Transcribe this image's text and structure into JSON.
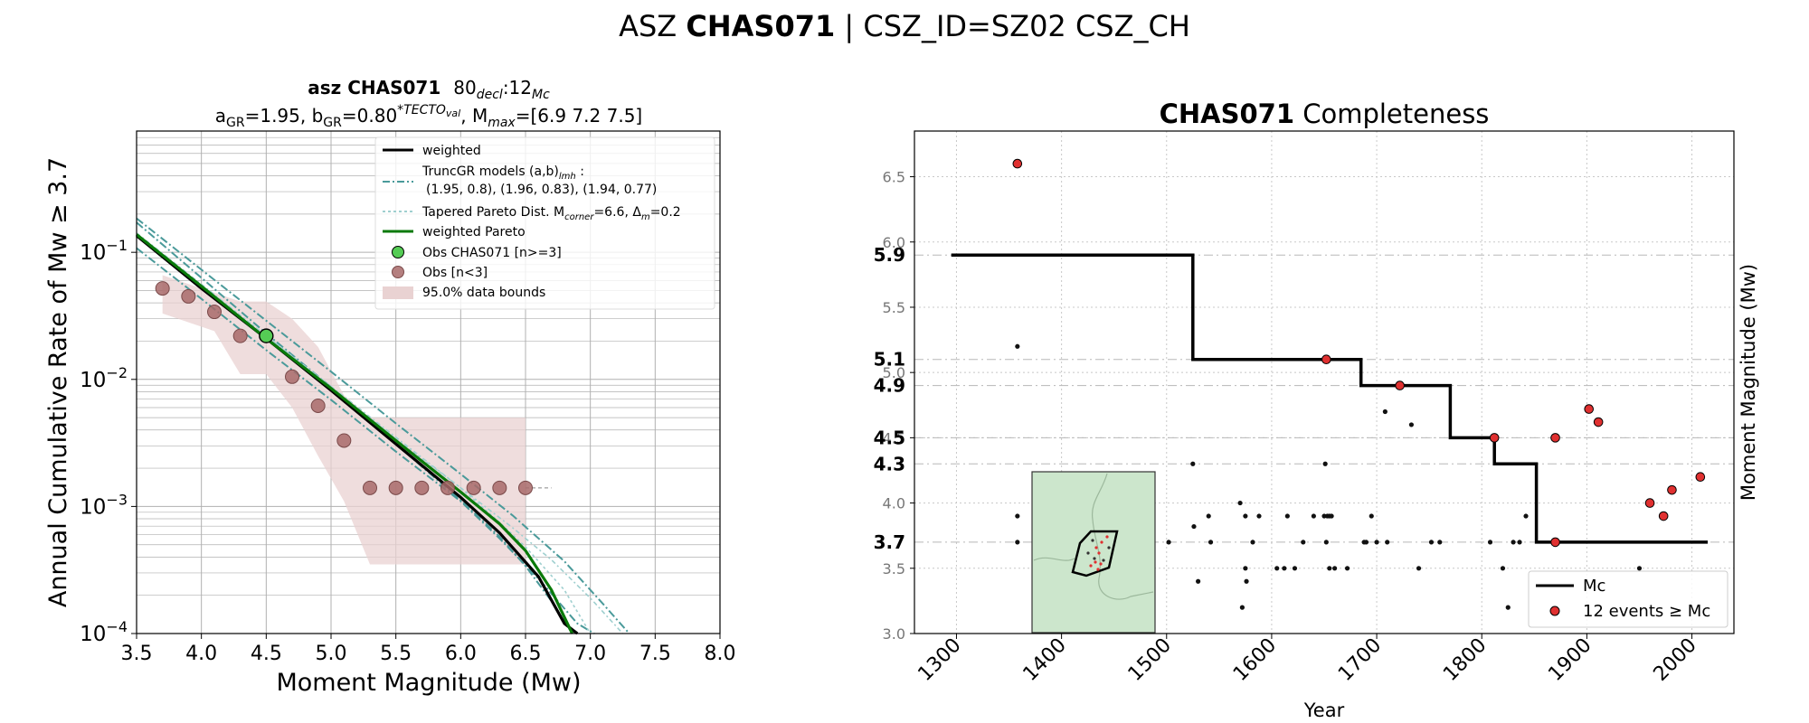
{
  "suptitle": {
    "prefix": "ASZ ",
    "name": "CHAS071",
    "suffix": " | CSZ_ID=SZ02 CSZ_CH"
  },
  "chart_data": [
    {
      "type": "scatter",
      "panel": "mfd",
      "title": {
        "line1_bold": "asz CHAS071",
        "line1_rest": "80",
        "line1_sub1": "decl",
        "line1_mid": ":12",
        "line1_sub2": "Mc",
        "line2_a": "a",
        "line2_a_sub": "GR",
        "line2_a_val": "=1.95,  b",
        "line2_b_sub": "GR",
        "line2_b_val": "=0.80",
        "line2_sup": "*TECTO",
        "line2_sup_sub": "val",
        "line2_rest": ", M",
        "line2_m_sub": "max",
        "line2_end": "=[6.9 7.2 7.5]"
      },
      "xlabel": "Moment Magnitude (Mw)",
      "ylabel": "Annual Cumulative Rate of Mw  ≥  3.7",
      "xlim": [
        3.5,
        8.0
      ],
      "ylim": [
        0.0001,
        0.9
      ],
      "yscale": "log",
      "xticks": [
        "3.5",
        "4.0",
        "4.5",
        "5.0",
        "5.5",
        "6.0",
        "6.5",
        "7.0",
        "7.5",
        "8.0"
      ],
      "yticks": [
        {
          "base": "10",
          "exp": "−1",
          "v": 0.1
        },
        {
          "base": "10",
          "exp": "−2",
          "v": 0.01
        },
        {
          "base": "10",
          "exp": "−3",
          "v": 0.001
        },
        {
          "base": "10",
          "exp": "−4",
          "v": 0.0001
        }
      ],
      "grid": true,
      "legend": {
        "placement": "top-right",
        "weighted": "weighted",
        "trunc_line1": "TruncGR models (a,b)",
        "trunc_sub": "lmh",
        "trunc_colon": " :",
        "trunc_line2": "(1.95, 0.8), (1.96, 0.83), (1.94, 0.77)",
        "tap_pre": "Tapered Pareto Dist. M",
        "tap_sub1": "corner",
        "tap_mid": "=6.6, Δ",
        "tap_sub2": "m",
        "tap_end": "=0.2",
        "pareto": "weighted Pareto",
        "obs_main": "Obs CHAS071 [n>=3]",
        "obs_small": "Obs [n<3]",
        "bounds": "95.0% data bounds"
      },
      "colors": {
        "weighted": "#000000",
        "trunc": "#4a9a9a",
        "tapered": "#9fcfcf",
        "pareto": "#0a7a0a",
        "obs_main": "#55cc55",
        "obs_small": "#a86a6a",
        "bounds": "#e9d2d2"
      },
      "obs_small": [
        {
          "x": 3.7,
          "y": 0.052
        },
        {
          "x": 3.9,
          "y": 0.045
        },
        {
          "x": 4.1,
          "y": 0.034
        },
        {
          "x": 4.3,
          "y": 0.022
        },
        {
          "x": 4.7,
          "y": 0.0105
        },
        {
          "x": 4.9,
          "y": 0.0062
        },
        {
          "x": 5.1,
          "y": 0.0033
        },
        {
          "x": 5.3,
          "y": 0.0014
        },
        {
          "x": 5.5,
          "y": 0.0014
        },
        {
          "x": 5.7,
          "y": 0.0014
        },
        {
          "x": 5.9,
          "y": 0.0014
        },
        {
          "x": 6.1,
          "y": 0.0014
        },
        {
          "x": 6.3,
          "y": 0.0014
        },
        {
          "x": 6.5,
          "y": 0.0014
        }
      ],
      "obs_main": [
        {
          "x": 4.5,
          "y": 0.022
        }
      ],
      "series": [
        {
          "name": "weighted",
          "x": [
            3.5,
            4.0,
            4.5,
            5.0,
            5.5,
            6.0,
            6.3,
            6.6,
            6.8,
            6.9
          ],
          "y": [
            0.135,
            0.052,
            0.021,
            0.0082,
            0.0031,
            0.00118,
            0.00062,
            0.00028,
            0.00012,
            0.0001
          ]
        },
        {
          "name": "weighted Pareto",
          "x": [
            3.5,
            4.0,
            4.5,
            5.0,
            5.5,
            6.0,
            6.3,
            6.5,
            6.7,
            6.86
          ],
          "y": [
            0.138,
            0.054,
            0.021,
            0.0085,
            0.0033,
            0.0013,
            0.00073,
            0.00045,
            0.00022,
            0.0001
          ]
        },
        {
          "x": [
            3.5,
            4.0,
            4.5,
            5.0,
            5.5,
            6.0,
            6.4,
            6.8,
            7.1,
            7.3
          ],
          "y": [
            0.185,
            0.073,
            0.029,
            0.0115,
            0.0045,
            0.0018,
            0.00085,
            0.00037,
            0.00017,
            0.0001
          ]
        },
        {
          "x": [
            3.5,
            4.0,
            4.5,
            5.0,
            5.5,
            6.0,
            6.3,
            6.6,
            6.9,
            7.03
          ],
          "y": [
            0.108,
            0.043,
            0.017,
            0.0069,
            0.0027,
            0.0011,
            0.00056,
            0.00027,
            0.00012,
            0.0001
          ]
        },
        {
          "x": [
            3.5,
            4.0,
            4.5,
            5.0,
            5.5,
            6.0,
            6.3,
            6.5,
            6.7,
            6.86
          ],
          "y": [
            0.172,
            0.063,
            0.023,
            0.0087,
            0.0031,
            0.00112,
            0.00058,
            0.00034,
            0.00018,
            0.0001
          ]
        },
        {
          "x": [
            3.5,
            4.0,
            4.5,
            5.0,
            5.5,
            6.0,
            6.3,
            6.5,
            6.8,
            7.0
          ],
          "y": [
            0.14,
            0.055,
            0.022,
            0.0087,
            0.0034,
            0.0014,
            0.00075,
            0.00048,
            0.00022,
            0.0001
          ]
        },
        {
          "x": [
            3.5,
            4.0,
            4.5,
            5.0,
            5.5,
            6.0,
            6.4,
            6.7,
            7.0,
            7.25
          ],
          "y": [
            0.142,
            0.056,
            0.022,
            0.0088,
            0.0035,
            0.0014,
            0.00068,
            0.00038,
            0.00019,
            0.0001
          ]
        }
      ],
      "bounds": {
        "x": [
          3.7,
          4.3,
          4.5,
          4.7,
          4.9,
          5.1,
          5.3,
          5.5,
          5.9,
          6.1,
          6.3,
          6.5,
          6.5,
          6.3,
          6.1,
          5.9,
          5.5,
          5.3,
          5.1,
          4.9,
          4.7,
          4.5,
          4.3,
          4.1,
          3.7
        ],
        "y": [
          0.066,
          0.041,
          0.041,
          0.03,
          0.018,
          0.0075,
          0.005,
          0.005,
          0.005,
          0.005,
          0.005,
          0.005,
          0.00035,
          0.00035,
          0.00035,
          0.00035,
          0.00035,
          0.00035,
          0.0011,
          0.0025,
          0.006,
          0.011,
          0.011,
          0.024,
          0.033
        ]
      }
    },
    {
      "type": "scatter",
      "panel": "completeness",
      "title_bold": "CHAS071",
      "title_rest": " Completeness",
      "xlabel": "Year",
      "ylabel": "Moment Magnitude (Mw)",
      "xlim": [
        1260,
        2040
      ],
      "ylim": [
        3.0,
        6.85
      ],
      "xticks": [
        "1300",
        "1400",
        "1500",
        "1600",
        "1700",
        "1800",
        "1900",
        "2000"
      ],
      "yticks": [
        "3.0",
        "3.5",
        "4.0",
        "4.5",
        "5.0",
        "5.5",
        "6.0",
        "6.5"
      ],
      "mc_labels": [
        "5.9",
        "5.1",
        "4.9",
        "4.5",
        "4.3",
        "3.7"
      ],
      "mc_steps": {
        "years": [
          1295,
          1525,
          1525,
          1685,
          1685,
          1770,
          1770,
          1812,
          1812,
          1852,
          1852,
          2015
        ],
        "mags": [
          5.9,
          5.9,
          5.1,
          5.1,
          4.9,
          4.9,
          4.5,
          4.5,
          4.3,
          4.3,
          3.7,
          3.7
        ]
      },
      "legend": {
        "placement": "bottom-right",
        "mc": "Mc",
        "events": "12 events  ≥  Mc"
      },
      "colors": {
        "mc": "#000000",
        "event_fill": "#e03030",
        "inset_bg": "#cce6cc"
      },
      "events_above": [
        {
          "x": 1358,
          "y": 6.6
        },
        {
          "x": 1652,
          "y": 5.1
        },
        {
          "x": 1722,
          "y": 4.9
        },
        {
          "x": 1812,
          "y": 4.5
        },
        {
          "x": 1870,
          "y": 3.7
        },
        {
          "x": 1870,
          "y": 4.5
        },
        {
          "x": 1902,
          "y": 4.72
        },
        {
          "x": 1911,
          "y": 4.62
        },
        {
          "x": 1960,
          "y": 4.0
        },
        {
          "x": 1973,
          "y": 3.9
        },
        {
          "x": 1981,
          "y": 4.1
        },
        {
          "x": 2008,
          "y": 4.2
        }
      ],
      "events_below": [
        {
          "x": 1358,
          "y": 5.2
        },
        {
          "x": 1358,
          "y": 3.9
        },
        {
          "x": 1358,
          "y": 3.7
        },
        {
          "x": 1502,
          "y": 3.7
        },
        {
          "x": 1525,
          "y": 4.3
        },
        {
          "x": 1526,
          "y": 3.82
        },
        {
          "x": 1530,
          "y": 3.4
        },
        {
          "x": 1540,
          "y": 3.9
        },
        {
          "x": 1542,
          "y": 3.7
        },
        {
          "x": 1570,
          "y": 4.0
        },
        {
          "x": 1572,
          "y": 3.2
        },
        {
          "x": 1575,
          "y": 3.5
        },
        {
          "x": 1575,
          "y": 3.9
        },
        {
          "x": 1576,
          "y": 3.4
        },
        {
          "x": 1582,
          "y": 3.7
        },
        {
          "x": 1588,
          "y": 3.9
        },
        {
          "x": 1605,
          "y": 3.5
        },
        {
          "x": 1612,
          "y": 3.5
        },
        {
          "x": 1615,
          "y": 3.9
        },
        {
          "x": 1622,
          "y": 3.5
        },
        {
          "x": 1630,
          "y": 3.7
        },
        {
          "x": 1640,
          "y": 3.9
        },
        {
          "x": 1650,
          "y": 3.9
        },
        {
          "x": 1651,
          "y": 4.3
        },
        {
          "x": 1652,
          "y": 3.7
        },
        {
          "x": 1653,
          "y": 3.9
        },
        {
          "x": 1655,
          "y": 3.9
        },
        {
          "x": 1655,
          "y": 3.5
        },
        {
          "x": 1657,
          "y": 3.9
        },
        {
          "x": 1660,
          "y": 3.5
        },
        {
          "x": 1672,
          "y": 3.5
        },
        {
          "x": 1688,
          "y": 3.7
        },
        {
          "x": 1690,
          "y": 3.7
        },
        {
          "x": 1695,
          "y": 3.9
        },
        {
          "x": 1700,
          "y": 3.7
        },
        {
          "x": 1708,
          "y": 4.7
        },
        {
          "x": 1710,
          "y": 3.7
        },
        {
          "x": 1733,
          "y": 4.6
        },
        {
          "x": 1740,
          "y": 3.5
        },
        {
          "x": 1752,
          "y": 3.7
        },
        {
          "x": 1760,
          "y": 3.7
        },
        {
          "x": 1808,
          "y": 3.7
        },
        {
          "x": 1820,
          "y": 3.5
        },
        {
          "x": 1825,
          "y": 3.2
        },
        {
          "x": 1830,
          "y": 3.7
        },
        {
          "x": 1836,
          "y": 3.7
        },
        {
          "x": 1842,
          "y": 3.9
        },
        {
          "x": 1950,
          "y": 3.5
        }
      ],
      "inset_region": "map of source zone CHAS071 with seismicity"
    }
  ]
}
